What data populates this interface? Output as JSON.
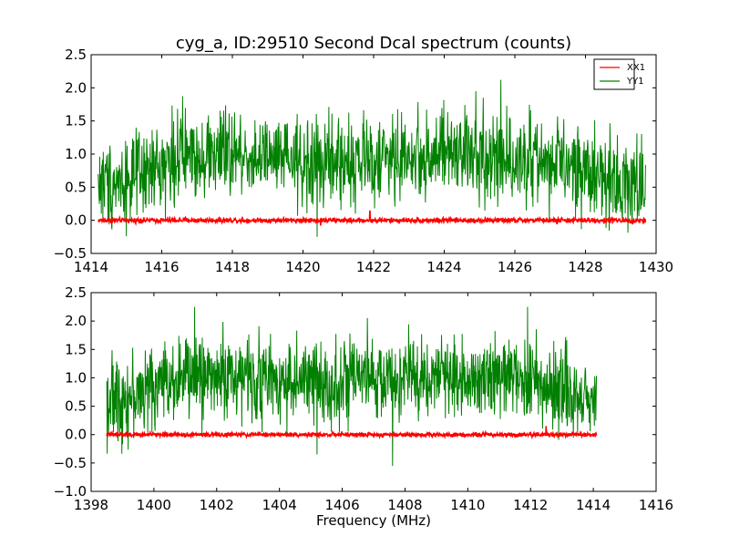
{
  "chart_data": [
    {
      "type": "line",
      "title": "cyg_a, ID:29510 Second Dcal spectrum (counts)",
      "xlabel": "",
      "ylabel": "",
      "xlim": [
        1414,
        1430
      ],
      "ylim": [
        -0.5,
        2.5
      ],
      "x_ticks": [
        1414,
        1416,
        1418,
        1420,
        1422,
        1424,
        1426,
        1428,
        1430
      ],
      "y_ticks": [
        -0.5,
        0.0,
        0.5,
        1.0,
        1.5,
        2.0,
        2.5
      ],
      "x_range_data": [
        1414.2,
        1429.7
      ],
      "grid": false,
      "legend": "top-right",
      "series": [
        {
          "name": "XX1",
          "color": "#ff0000",
          "profile": [
            [
              1414.2,
              0.0
            ],
            [
              1429.7,
              0.0
            ]
          ],
          "noise_amplitude": 0.03,
          "notable_spikes": [
            [
              1420.5,
              -0.08
            ],
            [
              1421.9,
              0.15
            ],
            [
              1427.2,
              -0.06
            ]
          ]
        },
        {
          "name": "YY1",
          "color": "#008000",
          "profile": [
            [
              1414.2,
              0.55
            ],
            [
              1415.5,
              0.65
            ],
            [
              1416.5,
              1.0
            ],
            [
              1418,
              1.0
            ],
            [
              1420,
              0.85
            ],
            [
              1422,
              0.9
            ],
            [
              1424,
              1.0
            ],
            [
              1426,
              0.95
            ],
            [
              1427.5,
              0.8
            ],
            [
              1429.7,
              0.5
            ]
          ],
          "noise_amplitude": 0.55,
          "notable_spikes": [
            [
              1425.6,
              2.12
            ],
            [
              1424.9,
              1.95
            ],
            [
              1420.4,
              -0.25
            ],
            [
              1425.1,
              1.85
            ]
          ]
        }
      ]
    },
    {
      "type": "line",
      "title": "",
      "xlabel": "Frequency (MHz)",
      "ylabel": "",
      "xlim": [
        1398,
        1416
      ],
      "ylim": [
        -1.0,
        2.5
      ],
      "x_ticks": [
        1398,
        1400,
        1402,
        1404,
        1406,
        1408,
        1410,
        1412,
        1414,
        1416
      ],
      "y_ticks": [
        -1.0,
        -0.5,
        0.0,
        0.5,
        1.0,
        1.5,
        2.0,
        2.5
      ],
      "x_range_data": [
        1398.5,
        1414.1
      ],
      "grid": false,
      "legend": "",
      "series": [
        {
          "name": "XX1",
          "color": "#ff0000",
          "profile": [
            [
              1398.5,
              0.0
            ],
            [
              1414.1,
              0.0
            ]
          ],
          "noise_amplitude": 0.03,
          "notable_spikes": [
            [
              1412.5,
              0.15
            ],
            [
              1401.0,
              -0.05
            ]
          ]
        },
        {
          "name": "YY1",
          "color": "#008000",
          "profile": [
            [
              1398.5,
              0.6
            ],
            [
              1399.5,
              0.7
            ],
            [
              1400.5,
              1.0
            ],
            [
              1402,
              1.05
            ],
            [
              1404,
              0.95
            ],
            [
              1406,
              0.9
            ],
            [
              1408,
              1.0
            ],
            [
              1410,
              1.05
            ],
            [
              1412,
              1.0
            ],
            [
              1413,
              0.75
            ],
            [
              1414.1,
              0.6
            ]
          ],
          "noise_amplitude": 0.6,
          "notable_spikes": [
            [
              1401.3,
              2.25
            ],
            [
              1411.9,
              2.25
            ],
            [
              1407.6,
              -0.55
            ],
            [
              1406.8,
              2.05
            ],
            [
              1405.2,
              -0.35
            ]
          ]
        }
      ]
    }
  ]
}
